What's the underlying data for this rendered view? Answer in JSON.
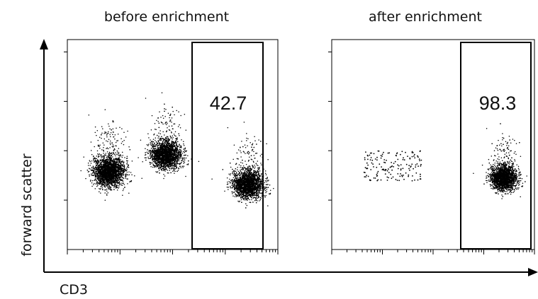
{
  "chart_data": {
    "type": "scatter",
    "xlabel": "CD3",
    "ylabel": "forward scatter",
    "x_scale": "log",
    "grid": false,
    "panels": [
      {
        "title": "before enrichment",
        "gate_percent": "42.7",
        "populations": [
          {
            "cx": 0.2,
            "cy": 0.37,
            "spread": 0.08,
            "density": "high"
          },
          {
            "cx": 0.47,
            "cy": 0.45,
            "spread": 0.08,
            "density": "high"
          },
          {
            "cx": 0.86,
            "cy": 0.31,
            "spread": 0.08,
            "density": "high"
          }
        ]
      },
      {
        "title": "after enrichment",
        "gate_percent": "98.3",
        "populations": [
          {
            "cx": 0.3,
            "cy": 0.37,
            "spread": 0.13,
            "density": "sparse"
          },
          {
            "cx": 0.85,
            "cy": 0.34,
            "spread": 0.07,
            "density": "high"
          }
        ]
      }
    ]
  }
}
